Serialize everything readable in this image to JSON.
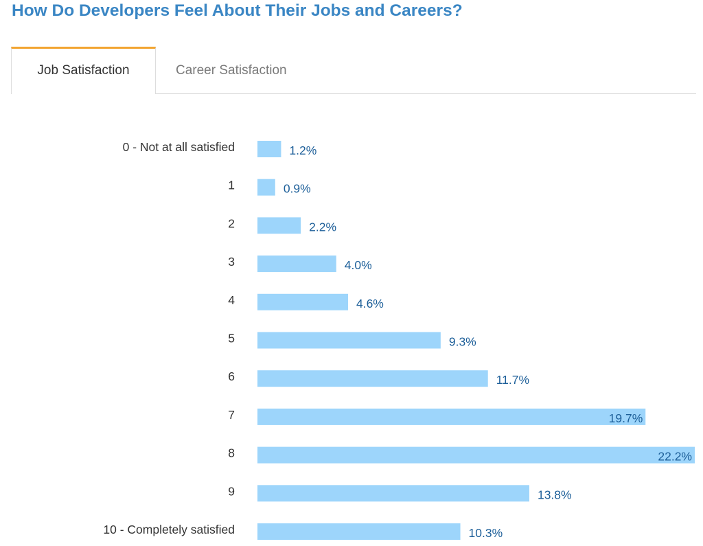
{
  "header": {
    "title": "How Do Developers Feel About Their Jobs and Careers?"
  },
  "tabs": [
    {
      "label": "Job Satisfaction",
      "active": true
    },
    {
      "label": "Career Satisfaction",
      "active": false
    }
  ],
  "colors": {
    "title": "#3a86c4",
    "tab_accent": "#f2a431",
    "bar": "#9dd5fb",
    "value_label": "#1d5f99"
  },
  "chart_data": {
    "type": "bar",
    "orientation": "horizontal",
    "title": "",
    "xlabel": "",
    "ylabel": "",
    "xlim": [
      0,
      22.2
    ],
    "grid": false,
    "categories": [
      "0 - Not at all satisfied",
      "1",
      "2",
      "3",
      "4",
      "5",
      "6",
      "7",
      "8",
      "9",
      "10 - Completely satisfied"
    ],
    "values": [
      1.2,
      0.9,
      2.2,
      4.0,
      4.6,
      9.3,
      11.7,
      19.7,
      22.2,
      13.8,
      10.3
    ],
    "value_labels": [
      "1.2%",
      "0.9%",
      "2.2%",
      "4.0%",
      "4.6%",
      "9.3%",
      "11.7%",
      "19.7%",
      "22.2%",
      "13.8%",
      "10.3%"
    ]
  }
}
